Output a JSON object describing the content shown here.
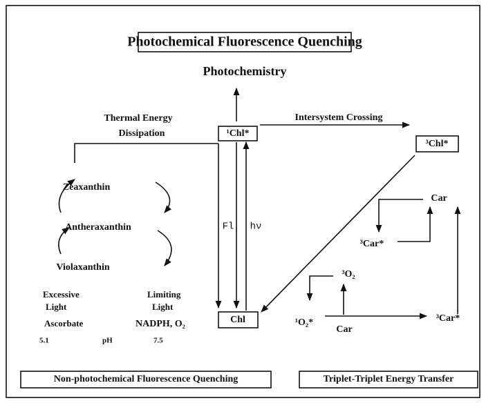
{
  "title": "Photochemical Fluorescence Quenching",
  "nodes": {
    "photochemistry": "Photochemistry",
    "chl_singlet": "¹Chl*",
    "chl_triplet": "³Chl*",
    "chl": "Chl",
    "zeaxanthin": "Zeaxanthin",
    "antheraxanthin": "Antheraxanthin",
    "violaxanthin": "Violaxanthin",
    "car_top": "Car",
    "car_triplet_mid": "³Car*",
    "o2_triplet": "³O₂",
    "o2_singlet": "¹O₂*",
    "car_bottom": "Car",
    "car_triplet_bottom": "³Car*"
  },
  "edges": {
    "thermal_1": "Thermal Energy",
    "thermal_2": "Dissipation",
    "isc": "Intersystem Crossing",
    "fl": "Fl",
    "hv": "hν"
  },
  "conditions": {
    "excessive_1": "Excessive",
    "excessive_2": "Light",
    "limiting_1": "Limiting",
    "limiting_2": "Light",
    "ascorbate": "Ascorbate",
    "nadph": "NADPH, O₂",
    "ph_low": "5.1",
    "ph": "pH",
    "ph_high": "7.5"
  },
  "footer": {
    "left": "Non-photochemical Fluorescence Quenching",
    "right": "Triplet-Triplet Energy Transfer"
  }
}
